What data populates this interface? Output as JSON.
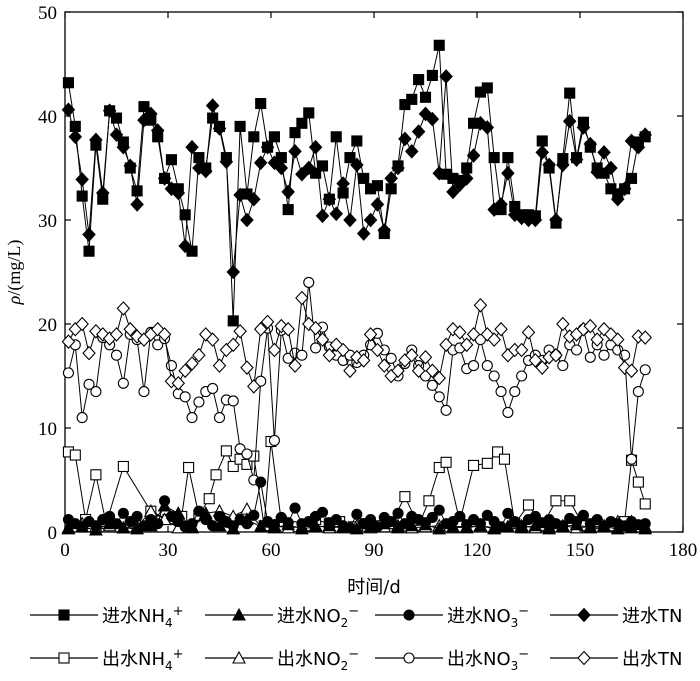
{
  "chart_data": {
    "type": "line",
    "xlabel": "时间/d",
    "ylabel": "ρ/(mg/L)",
    "xlim": [
      0,
      180
    ],
    "ylim": [
      0,
      50
    ],
    "xticks": [
      0,
      30,
      60,
      90,
      120,
      150,
      180
    ],
    "yticks": [
      0,
      10,
      20,
      30,
      40,
      50
    ],
    "grid": false,
    "legend_position": "bottom",
    "series": [
      {
        "name": "进水NH4+",
        "label": {
          "pre": "进水NH",
          "sub": "4",
          "sup": "+"
        },
        "marker": "square-filled",
        "x": [
          1,
          3,
          5,
          7,
          9,
          11,
          13,
          15,
          17,
          19,
          21,
          23,
          25,
          27,
          29,
          31,
          33,
          35,
          37,
          39,
          41,
          43,
          45,
          47,
          49,
          51,
          53,
          55,
          57,
          59,
          61,
          63,
          65,
          67,
          69,
          71,
          73,
          75,
          77,
          79,
          81,
          83,
          85,
          87,
          89,
          91,
          93,
          95,
          97,
          99,
          101,
          103,
          105,
          107,
          109,
          111,
          113,
          115,
          117,
          119,
          121,
          123,
          125,
          127,
          129,
          131,
          133,
          135,
          137,
          139,
          141,
          143,
          145,
          147,
          149,
          151,
          153,
          155,
          157,
          159,
          161,
          163,
          165,
          167,
          169
        ],
        "y": [
          43.2,
          39.0,
          32.3,
          27.0,
          37.2,
          32.0,
          40.5,
          39.8,
          37.5,
          35.0,
          32.8,
          40.9,
          39.6,
          38.0,
          34.0,
          35.8,
          33.0,
          30.5,
          27.0,
          36.0,
          35.0,
          39.8,
          39.0,
          36.0,
          20.3,
          39.0,
          32.5,
          38.0,
          41.2,
          37.0,
          38.0,
          36.0,
          31.0,
          38.4,
          39.3,
          40.3,
          34.5,
          35.2,
          32.0,
          38.0,
          32.6,
          36.0,
          37.6,
          34.0,
          33.0,
          33.3,
          28.7,
          33.0,
          35.2,
          41.1,
          41.6,
          43.5,
          41.8,
          43.9,
          46.8,
          34.4,
          34.0,
          33.8,
          35.0,
          39.3,
          42.3,
          42.7,
          36.0,
          31.0,
          36.0,
          31.3,
          30.5,
          30.5,
          30.4,
          37.6,
          35.0,
          29.7,
          35.9,
          42.2,
          36.0,
          39.4,
          37.0,
          35.0,
          34.5,
          33.0,
          32.5,
          33.0,
          34.0,
          37.5,
          38.0
        ]
      },
      {
        "name": "进水NO2−",
        "label": {
          "pre": "进水NO",
          "sub": "2",
          "sup": "−"
        },
        "marker": "triangle-filled",
        "x": [
          1,
          5,
          9,
          13,
          17,
          21,
          25,
          29,
          33,
          37,
          41,
          45,
          49,
          53,
          57,
          61,
          65,
          69,
          73,
          77,
          81,
          85,
          89,
          93,
          97,
          101,
          105,
          109,
          113,
          117,
          121,
          125,
          129,
          133,
          137,
          141,
          145,
          149,
          153,
          157,
          161,
          165,
          169
        ],
        "y": [
          0.3,
          0.5,
          0.2,
          0.8,
          0.4,
          0.3,
          0.6,
          2.5,
          1.8,
          0.4,
          1.6,
          0.6,
          0.3,
          1.2,
          0.5,
          0.4,
          0.7,
          0.3,
          0.5,
          0.6,
          0.4,
          0.3,
          0.5,
          0.8,
          0.4,
          0.6,
          0.7,
          0.3,
          0.5,
          0.4,
          0.6,
          0.3,
          0.5,
          0.4,
          0.6,
          0.3,
          0.5,
          0.7,
          0.4,
          0.5,
          0.3,
          0.4,
          0.3
        ]
      },
      {
        "name": "进水NO3−",
        "label": {
          "pre": "进水NO",
          "sub": "3",
          "sup": "−"
        },
        "marker": "circle-filled",
        "x": [
          1,
          3,
          5,
          7,
          9,
          11,
          13,
          15,
          17,
          19,
          21,
          23,
          25,
          27,
          29,
          31,
          33,
          35,
          37,
          39,
          41,
          43,
          45,
          47,
          49,
          51,
          53,
          55,
          57,
          59,
          61,
          63,
          65,
          67,
          69,
          71,
          73,
          75,
          77,
          79,
          81,
          83,
          85,
          87,
          89,
          91,
          93,
          95,
          97,
          99,
          101,
          103,
          105,
          107,
          109,
          111,
          113,
          115,
          117,
          119,
          121,
          123,
          125,
          127,
          129,
          131,
          133,
          135,
          137,
          139,
          141,
          143,
          145,
          147,
          149,
          151,
          153,
          155,
          157,
          159,
          161,
          163,
          165,
          167,
          169
        ],
        "y": [
          1.2,
          0.8,
          0.5,
          1.0,
          0.6,
          1.2,
          1.5,
          0.8,
          1.8,
          1.0,
          1.5,
          0.6,
          1.2,
          0.8,
          3.0,
          1.5,
          1.0,
          0.5,
          0.8,
          2.0,
          1.2,
          0.6,
          1.5,
          1.0,
          0.6,
          1.2,
          0.8,
          1.6,
          4.8,
          1.0,
          0.7,
          1.4,
          0.9,
          2.3,
          0.8,
          1.0,
          1.5,
          1.9,
          0.9,
          1.2,
          0.6,
          0.4,
          1.7,
          0.8,
          1.2,
          0.5,
          1.4,
          1.0,
          1.8,
          0.8,
          1.5,
          1.2,
          0.9,
          1.4,
          2.1,
          0.8,
          1.0,
          1.5,
          0.7,
          1.2,
          0.8,
          1.6,
          1.0,
          0.5,
          1.8,
          1.0,
          0.6,
          1.2,
          1.5,
          0.9,
          1.2,
          0.8,
          0.6,
          1.3,
          1.0,
          1.6,
          0.8,
          1.2,
          0.5,
          1.0,
          0.8,
          0.6,
          1.0,
          0.7,
          0.8
        ]
      },
      {
        "name": "进水TN",
        "label": {
          "pre": "进水TN",
          "sub": "",
          "sup": ""
        },
        "marker": "diamond-filled",
        "x": [
          1,
          3,
          5,
          7,
          9,
          11,
          13,
          15,
          17,
          19,
          21,
          23,
          25,
          27,
          29,
          31,
          33,
          35,
          37,
          39,
          41,
          43,
          45,
          47,
          49,
          51,
          53,
          55,
          57,
          59,
          61,
          63,
          65,
          67,
          69,
          71,
          73,
          75,
          77,
          79,
          81,
          83,
          85,
          87,
          89,
          91,
          93,
          95,
          97,
          99,
          101,
          103,
          105,
          107,
          109,
          111,
          113,
          115,
          117,
          119,
          121,
          123,
          125,
          127,
          129,
          131,
          133,
          135,
          137,
          139,
          141,
          143,
          145,
          147,
          149,
          151,
          153,
          155,
          157,
          159,
          161,
          163,
          165,
          167,
          169
        ],
        "y": [
          40.6,
          38.0,
          33.9,
          28.6,
          37.7,
          32.6,
          40.5,
          38.2,
          37.0,
          35.2,
          31.5,
          39.6,
          40.2,
          38.6,
          34.0,
          33.0,
          32.6,
          27.5,
          37.0,
          35.0,
          34.7,
          41.0,
          38.8,
          35.6,
          25.0,
          32.4,
          30.0,
          32.0,
          35.5,
          37.0,
          35.5,
          35.0,
          32.7,
          36.6,
          34.4,
          35.0,
          37.0,
          30.4,
          32.0,
          30.6,
          33.5,
          30.0,
          35.3,
          28.7,
          30.0,
          31.5,
          29.0,
          34.0,
          35.0,
          37.8,
          36.6,
          38.5,
          40.2,
          39.7,
          34.5,
          43.8,
          32.7,
          33.4,
          34.0,
          36.2,
          39.3,
          38.9,
          31.0,
          31.5,
          34.5,
          30.5,
          30.2,
          30.0,
          30.0,
          36.5,
          35.3,
          30.0,
          35.3,
          39.5,
          35.8,
          38.9,
          37.3,
          34.6,
          36.5,
          35.0,
          32.0,
          33.0,
          37.6,
          37.0,
          38.2
        ]
      },
      {
        "name": "出水NH4+",
        "label": {
          "pre": "出水NH",
          "sub": "4",
          "sup": "+"
        },
        "marker": "square-open",
        "x": [
          1,
          3,
          6,
          9,
          12,
          17,
          25,
          30,
          34,
          36,
          39,
          42,
          44,
          47,
          49,
          51,
          53,
          55,
          58,
          60,
          63,
          67,
          70,
          73,
          77,
          80,
          84,
          87,
          92,
          95,
          99,
          103,
          106,
          109,
          111,
          115,
          119,
          123,
          126,
          128,
          131,
          135,
          139,
          143,
          147,
          151,
          155,
          159,
          163,
          165,
          167,
          169
        ],
        "y": [
          7.7,
          7.4,
          1.2,
          5.5,
          0.8,
          6.3,
          2.0,
          1.2,
          1.5,
          6.2,
          1.6,
          3.2,
          5.5,
          7.8,
          6.3,
          7.0,
          6.5,
          7.3,
          0.6,
          8.7,
          1.0,
          0.5,
          0.6,
          1.2,
          0.8,
          1.0,
          0.5,
          0.8,
          0.6,
          0.8,
          3.4,
          0.6,
          3.0,
          6.2,
          6.7,
          1.0,
          6.4,
          6.6,
          7.7,
          7.0,
          0.8,
          2.6,
          0.6,
          3.0,
          3.0,
          0.6,
          0.8,
          0.6,
          1.0,
          6.9,
          4.8,
          2.7
        ]
      },
      {
        "name": "出水NO2−",
        "label": {
          "pre": "出水NO",
          "sub": "2",
          "sup": "−"
        },
        "marker": "triangle-open",
        "x": [
          1,
          5,
          9,
          13,
          17,
          21,
          25,
          29,
          33,
          37,
          41,
          45,
          49,
          53,
          57,
          61,
          65,
          69,
          73,
          77,
          81,
          85,
          89,
          93,
          97,
          101,
          105,
          109,
          113,
          117,
          121,
          125,
          129,
          133,
          137,
          141,
          145,
          149,
          153,
          157,
          161,
          165,
          169
        ],
        "y": [
          0.4,
          0.8,
          0.5,
          0.6,
          0.4,
          0.5,
          2.0,
          1.2,
          0.4,
          0.5,
          1.8,
          2.0,
          1.5,
          2.2,
          0.5,
          0.6,
          0.4,
          0.5,
          0.6,
          0.4,
          0.5,
          0.6,
          0.4,
          0.5,
          0.6,
          0.4,
          0.5,
          0.6,
          0.4,
          0.5,
          0.6,
          0.4,
          0.5,
          0.6,
          0.4,
          0.5,
          0.6,
          0.4,
          0.5,
          0.6,
          1.0,
          1.0,
          0.5
        ]
      },
      {
        "name": "出水NO3−",
        "label": {
          "pre": "出水NO",
          "sub": "3",
          "sup": "−"
        },
        "marker": "circle-open",
        "x": [
          1,
          3,
          5,
          7,
          9,
          11,
          13,
          15,
          17,
          19,
          21,
          23,
          25,
          27,
          29,
          31,
          33,
          35,
          37,
          39,
          41,
          43,
          45,
          47,
          49,
          51,
          53,
          55,
          57,
          59,
          61,
          63,
          65,
          67,
          69,
          71,
          73,
          75,
          77,
          79,
          81,
          83,
          85,
          87,
          89,
          91,
          93,
          95,
          97,
          99,
          101,
          103,
          105,
          107,
          109,
          111,
          113,
          115,
          117,
          119,
          121,
          123,
          125,
          127,
          129,
          131,
          133,
          135,
          137,
          139,
          141,
          143,
          145,
          147,
          149,
          151,
          153,
          155,
          157,
          159,
          161,
          163,
          165,
          167,
          169
        ],
        "y": [
          15.3,
          18.0,
          11.0,
          14.2,
          13.5,
          18.7,
          18.0,
          17.0,
          14.3,
          19.0,
          18.5,
          13.5,
          19.2,
          18.0,
          18.6,
          16.0,
          13.3,
          13.0,
          11.0,
          12.5,
          13.5,
          13.8,
          11.0,
          12.7,
          12.6,
          8.0,
          7.5,
          5.0,
          14.5,
          19.6,
          8.8,
          19.4,
          16.7,
          17.2,
          17.0,
          24.0,
          17.7,
          19.7,
          17.8,
          17.0,
          16.5,
          17.0,
          16.3,
          17.0,
          18.0,
          19.1,
          17.5,
          16.7,
          15.0,
          16.2,
          17.5,
          16.0,
          15.0,
          14.1,
          13.0,
          11.7,
          17.5,
          17.7,
          15.7,
          16.0,
          18.5,
          16.0,
          15.0,
          13.5,
          11.5,
          13.5,
          15.0,
          16.5,
          17.0,
          16.5,
          17.5,
          17.0,
          16.0,
          18.0,
          17.5,
          19.5,
          16.8,
          18.0,
          17.0,
          18.0,
          17.5,
          17.0,
          7.0,
          13.5,
          15.6
        ]
      },
      {
        "name": "出水TN",
        "label": {
          "pre": "出水TN",
          "sub": "",
          "sup": ""
        },
        "marker": "diamond-open",
        "x": [
          1,
          3,
          5,
          7,
          9,
          11,
          13,
          15,
          17,
          19,
          21,
          23,
          25,
          27,
          29,
          31,
          33,
          35,
          37,
          39,
          41,
          43,
          45,
          47,
          49,
          51,
          53,
          55,
          57,
          59,
          61,
          63,
          65,
          67,
          69,
          71,
          73,
          75,
          77,
          79,
          81,
          83,
          85,
          87,
          89,
          91,
          93,
          95,
          97,
          99,
          101,
          103,
          105,
          107,
          109,
          111,
          113,
          115,
          117,
          119,
          121,
          123,
          125,
          127,
          129,
          131,
          133,
          135,
          137,
          139,
          141,
          143,
          145,
          147,
          149,
          151,
          153,
          155,
          157,
          159,
          161,
          163,
          165,
          167,
          169
        ],
        "y": [
          18.3,
          19.5,
          20.0,
          17.2,
          19.3,
          19.0,
          18.6,
          19.0,
          21.5,
          19.5,
          18.8,
          18.5,
          19.0,
          19.5,
          19.0,
          14.5,
          14.3,
          15.5,
          16.2,
          17.0,
          19.0,
          18.5,
          16.0,
          17.5,
          18.0,
          19.3,
          15.8,
          14.0,
          19.5,
          20.2,
          17.5,
          19.8,
          19.5,
          16.0,
          22.5,
          20.0,
          19.6,
          18.5,
          17.0,
          18.0,
          17.5,
          15.5,
          16.8,
          16.5,
          19.0,
          17.5,
          16.0,
          15.0,
          15.5,
          16.5,
          17.0,
          15.5,
          16.8,
          15.5,
          14.8,
          18.0,
          19.5,
          19.2,
          18.0,
          19.0,
          21.8,
          19.0,
          18.5,
          19.5,
          17.0,
          17.5,
          17.5,
          19.2,
          16.5,
          15.8,
          16.8,
          17.0,
          20.0,
          18.8,
          19.0,
          19.5,
          19.8,
          18.5,
          19.5,
          19.0,
          18.5,
          15.8,
          15.5,
          18.8,
          18.7
        ]
      }
    ]
  }
}
